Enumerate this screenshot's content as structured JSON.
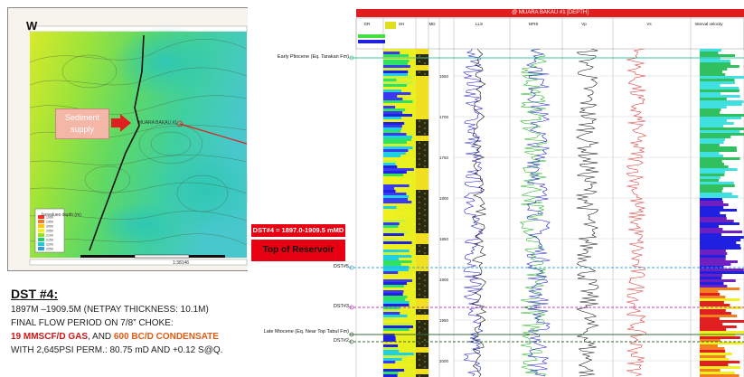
{
  "map": {
    "corner_label": "W",
    "sediment_label": "Sediment supply",
    "well_label": "MUARA BAKAU #1",
    "scale_label": "1:38146",
    "legend_title": "Isovalues depth (m)",
    "legend_values": [
      "1900",
      "1950",
      "2000",
      "2050",
      "2100",
      "2150",
      "2200",
      "2250"
    ],
    "legend_colors": [
      "#ff2a2a",
      "#ff7a1a",
      "#ffc21a",
      "#f4f40a",
      "#8ee61a",
      "#22d06a",
      "#20c6d0",
      "#2aa0e6"
    ],
    "arrow_color": "#e02020"
  },
  "dst": {
    "title": "DST #4:",
    "line1": "1897M –1909.5M (NETPAY THICKNESS: 10.1M)",
    "line2": "FINAL FLOW PERIOD ON 7/8” CHOKE:",
    "gas": "19 MMSCF/D GAS",
    "and": ", AND ",
    "condensate": "600 BC/D CONDENSATE",
    "line4": "WITH 2,645PSI PERM.: 80.75 mD AND +0.12 S@Q."
  },
  "log": {
    "header_title": "@ MUARA BAKAU #1 [DEPTH]",
    "track_headers": [
      "GR",
      "SH",
      "MD",
      "LLS",
      "NPHI",
      "Vp",
      "Vs",
      "Interval velocity"
    ],
    "depth_ticks": [
      "1650",
      "1700",
      "1750",
      "1800",
      "1850",
      "1900",
      "1950",
      "2000"
    ],
    "markers": {
      "early_pliocene": "Early Pliocene (Eq. Tarakan Fm)",
      "dst5": "DST#5",
      "dst3": "DST#3",
      "late_miocene": "Late Miocene (Eq. Near Top Tabul Fm)",
      "dst2": "DST#2"
    },
    "dst4_box": "DST#4 = 1897.0-1909.5 mMD",
    "reservoir_box": "Top of Reservoir"
  }
}
